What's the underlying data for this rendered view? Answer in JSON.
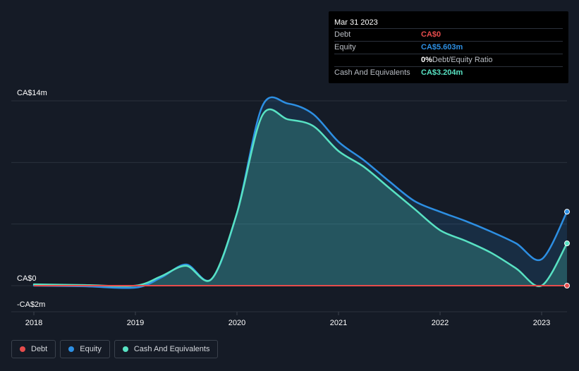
{
  "tooltip": {
    "date": "Mar 31 2023",
    "rows": [
      {
        "label": "Debt",
        "value": "CA$0",
        "color": "#e64c4c"
      },
      {
        "label": "Equity",
        "value": "CA$5.603m",
        "color": "#2d8fe3"
      },
      {
        "label": "",
        "value": "0%",
        "suffix": " Debt/Equity Ratio",
        "color": "#ffffff"
      },
      {
        "label": "Cash And Equivalents",
        "value": "CA$3.204m",
        "color": "#58e2c3"
      }
    ]
  },
  "legend": [
    {
      "label": "Debt",
      "color": "#e64c4c"
    },
    {
      "label": "Equity",
      "color": "#2d8fe3"
    },
    {
      "label": "Cash And Equivalents",
      "color": "#58e2c3"
    }
  ],
  "chart_data": {
    "type": "area",
    "title": "",
    "ylabel": "",
    "xlabel": "",
    "ylim": [
      -2,
      14
    ],
    "y_tick_labels": [
      {
        "value": 14,
        "label": "CA$14m"
      },
      {
        "value": 0,
        "label": "CA$0"
      },
      {
        "value": -2,
        "label": "-CA$2m"
      }
    ],
    "xlim": [
      2018.0,
      2023.25
    ],
    "x_tick_labels": [
      "2018",
      "2019",
      "2020",
      "2021",
      "2022",
      "2023"
    ],
    "series": [
      {
        "name": "Equity",
        "color": "#2d8fe3",
        "points": [
          [
            2018.0,
            0.0
          ],
          [
            2018.5,
            -0.05
          ],
          [
            2019.0,
            -0.15
          ],
          [
            2019.25,
            0.6
          ],
          [
            2019.5,
            1.6
          ],
          [
            2019.75,
            0.5
          ],
          [
            2020.0,
            5.5
          ],
          [
            2020.25,
            13.6
          ],
          [
            2020.5,
            13.8
          ],
          [
            2020.75,
            13.0
          ],
          [
            2021.0,
            10.9
          ],
          [
            2021.25,
            9.5
          ],
          [
            2021.5,
            7.9
          ],
          [
            2021.75,
            6.4
          ],
          [
            2022.0,
            5.6
          ],
          [
            2022.25,
            4.9
          ],
          [
            2022.5,
            4.1
          ],
          [
            2022.75,
            3.2
          ],
          [
            2023.0,
            2.0
          ],
          [
            2023.25,
            5.603
          ]
        ]
      },
      {
        "name": "Cash And Equivalents",
        "color": "#58e2c3",
        "points": [
          [
            2018.0,
            0.1
          ],
          [
            2018.5,
            0.05
          ],
          [
            2019.0,
            0.0
          ],
          [
            2019.25,
            0.7
          ],
          [
            2019.5,
            1.5
          ],
          [
            2019.75,
            0.5
          ],
          [
            2020.0,
            5.5
          ],
          [
            2020.25,
            12.9
          ],
          [
            2020.5,
            12.6
          ],
          [
            2020.75,
            12.1
          ],
          [
            2021.0,
            10.2
          ],
          [
            2021.25,
            9.0
          ],
          [
            2021.5,
            7.4
          ],
          [
            2021.75,
            5.8
          ],
          [
            2022.0,
            4.2
          ],
          [
            2022.25,
            3.4
          ],
          [
            2022.5,
            2.5
          ],
          [
            2022.75,
            1.3
          ],
          [
            2023.0,
            0.0
          ],
          [
            2023.25,
            3.204
          ]
        ]
      },
      {
        "name": "Debt",
        "color": "#e64c4c",
        "points": [
          [
            2018.0,
            0.0
          ],
          [
            2023.25,
            0.0
          ]
        ]
      }
    ]
  }
}
